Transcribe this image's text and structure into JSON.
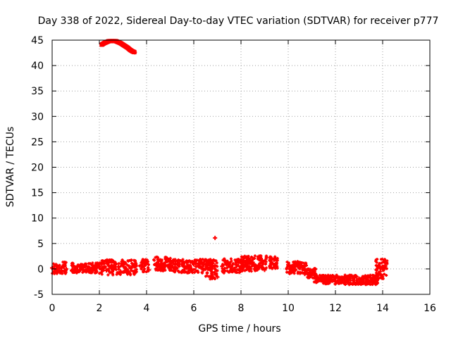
{
  "chart_data": {
    "type": "scatter",
    "title": "Day 338 of 2022, Sidereal Day-to-day VTEC variation (SDTVAR) for receiver p777",
    "xlabel": "GPS time / hours",
    "ylabel": "SDTVAR / TECUs",
    "xlim": [
      0,
      16
    ],
    "ylim": [
      -5,
      45
    ],
    "xticks": [
      0,
      2,
      4,
      6,
      8,
      10,
      12,
      14,
      16
    ],
    "yticks": [
      -5,
      0,
      5,
      10,
      15,
      20,
      25,
      30,
      35,
      40,
      45
    ],
    "grid": true,
    "marker_color": "#ff0000",
    "series": [
      {
        "values": [
          [
            0.0,
            0.2
          ],
          [
            0.1,
            -0.4
          ],
          [
            0.2,
            0.6
          ],
          [
            0.3,
            0.1
          ],
          [
            0.4,
            -0.3
          ],
          [
            0.5,
            0.4
          ],
          [
            0.6,
            0.0
          ],
          [
            1.0,
            0.3
          ],
          [
            1.2,
            -0.2
          ],
          [
            1.4,
            0.5
          ],
          [
            1.6,
            0.1
          ],
          [
            1.8,
            0.4
          ],
          [
            2.0,
            0.2
          ],
          [
            2.1,
            0.9
          ],
          [
            2.2,
            0.3
          ],
          [
            2.3,
            -0.3
          ],
          [
            2.4,
            1.2
          ],
          [
            2.5,
            0.5
          ],
          [
            2.6,
            0.0
          ],
          [
            2.7,
            1.0
          ],
          [
            2.8,
            0.4
          ],
          [
            2.9,
            -0.5
          ],
          [
            3.0,
            0.8
          ],
          [
            3.1,
            0.2
          ],
          [
            3.2,
            -0.4
          ],
          [
            3.4,
            0.6
          ],
          [
            3.5,
            -0.5
          ],
          [
            3.8,
            1.2
          ],
          [
            3.9,
            0.6
          ],
          [
            4.0,
            1.4
          ],
          [
            4.1,
            -0.2
          ],
          [
            4.4,
            0.8
          ],
          [
            4.5,
            1.8
          ],
          [
            4.6,
            1.0
          ],
          [
            4.7,
            0.3
          ],
          [
            4.8,
            1.3
          ],
          [
            4.9,
            0.5
          ],
          [
            5.0,
            0.0
          ],
          [
            5.2,
            0.4
          ],
          [
            5.4,
            1.0
          ],
          [
            5.5,
            1.4
          ],
          [
            5.6,
            0.6
          ],
          [
            5.7,
            1.2
          ],
          [
            5.8,
            0.2
          ],
          [
            5.9,
            -0.3
          ],
          [
            6.0,
            0.9
          ],
          [
            6.1,
            0.5
          ],
          [
            6.2,
            1.1
          ],
          [
            6.3,
            0.3
          ],
          [
            6.4,
            -0.2
          ],
          [
            6.5,
            0.8
          ],
          [
            6.6,
            0.0
          ],
          [
            6.7,
            1.3
          ],
          [
            6.8,
            -1.2
          ],
          [
            6.9,
            0.7
          ],
          [
            7.0,
            -1.6
          ],
          [
            6.9,
            6.1
          ],
          [
            7.2,
            0.5
          ],
          [
            7.3,
            -0.4
          ],
          [
            7.5,
            0.9
          ],
          [
            7.6,
            0.2
          ],
          [
            7.7,
            -0.3
          ],
          [
            7.8,
            0.8
          ],
          [
            7.9,
            1.2
          ],
          [
            8.0,
            0.4
          ],
          [
            8.1,
            2.2
          ],
          [
            8.2,
            1.4
          ],
          [
            8.3,
            0.6
          ],
          [
            8.4,
            0.0
          ],
          [
            8.5,
            1.3
          ],
          [
            8.6,
            0.7
          ],
          [
            8.8,
            1.9
          ],
          [
            8.9,
            0.3
          ],
          [
            9.0,
            -0.2
          ],
          [
            9.3,
            1.0
          ],
          [
            9.4,
            1.8
          ],
          [
            9.5,
            0.5
          ],
          [
            10.0,
            0.8
          ],
          [
            10.1,
            0.3
          ],
          [
            10.3,
            -0.2
          ],
          [
            10.4,
            0.6
          ],
          [
            10.5,
            -0.8
          ],
          [
            10.6,
            0.2
          ],
          [
            10.7,
            -1.0
          ],
          [
            10.8,
            -0.3
          ],
          [
            10.9,
            -1.6
          ],
          [
            11.0,
            -0.9
          ],
          [
            11.1,
            -1.7
          ],
          [
            11.2,
            -2.4
          ],
          [
            11.3,
            -1.9
          ],
          [
            11.5,
            -2.3
          ],
          [
            11.6,
            -1.6
          ],
          [
            11.7,
            -2.6
          ],
          [
            11.8,
            -2.0
          ],
          [
            12.0,
            -2.5
          ],
          [
            12.1,
            -1.8
          ],
          [
            12.3,
            -2.2
          ],
          [
            12.4,
            -1.5
          ],
          [
            12.5,
            -2.7
          ],
          [
            12.6,
            -1.9
          ],
          [
            12.8,
            -2.6
          ],
          [
            12.9,
            -2.2
          ],
          [
            13.0,
            -1.9
          ],
          [
            13.1,
            -2.7
          ],
          [
            13.2,
            -2.3
          ],
          [
            13.3,
            -1.9
          ],
          [
            13.4,
            -2.4
          ],
          [
            13.5,
            -1.7
          ],
          [
            13.6,
            -2.6
          ],
          [
            13.7,
            -1.8
          ],
          [
            13.8,
            -1.2
          ],
          [
            13.9,
            -0.5
          ],
          [
            14.0,
            0.3
          ],
          [
            14.1,
            1.2
          ],
          [
            2.1,
            44.1
          ],
          [
            2.2,
            44.4
          ],
          [
            2.3,
            44.6
          ],
          [
            2.4,
            44.8
          ],
          [
            2.5,
            44.8
          ],
          [
            2.6,
            44.8
          ],
          [
            2.7,
            44.8
          ],
          [
            2.8,
            44.6
          ],
          [
            2.9,
            44.4
          ],
          [
            3.0,
            44.1
          ],
          [
            3.1,
            43.8
          ],
          [
            3.2,
            43.5
          ],
          [
            3.3,
            43.1
          ],
          [
            3.4,
            42.8
          ],
          [
            3.5,
            42.6
          ]
        ],
        "bands": [
          [
            0.0,
            0.6,
            -1.0,
            1.4
          ],
          [
            0.8,
            2.0,
            -0.8,
            1.2
          ],
          [
            2.0,
            3.6,
            -1.2,
            1.9
          ],
          [
            3.7,
            4.1,
            -0.6,
            1.9
          ],
          [
            4.3,
            5.1,
            -0.4,
            2.4
          ],
          [
            5.1,
            6.8,
            -0.8,
            1.9
          ],
          [
            6.5,
            7.0,
            -2.0,
            1.8
          ],
          [
            7.2,
            8.3,
            -0.8,
            2.0
          ],
          [
            8.0,
            9.1,
            -0.5,
            2.6
          ],
          [
            9.2,
            9.6,
            0.0,
            2.4
          ],
          [
            9.9,
            10.8,
            -1.0,
            1.5
          ],
          [
            10.8,
            11.2,
            -1.8,
            0.2
          ],
          [
            11.1,
            12.5,
            -3.0,
            -1.2
          ],
          [
            12.4,
            13.8,
            -3.1,
            -1.2
          ],
          [
            13.7,
            14.2,
            -2.5,
            2.0
          ]
        ]
      }
    ]
  }
}
